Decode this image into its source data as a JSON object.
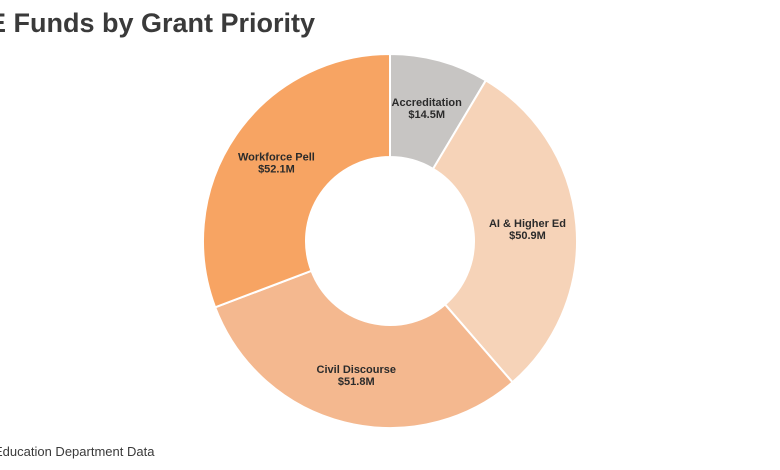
{
  "page": {
    "title": "E Funds by Grant Priority",
    "source": "Education Department Data"
  },
  "chart_data": {
    "type": "pie",
    "donut": true,
    "title": "E Funds by Grant Priority",
    "unit": "$M",
    "start": "12 o'clock",
    "direction": "clockwise",
    "categories": [
      "Accreditation",
      "AI & Higher Ed",
      "Civil Discourse",
      "Workforce Pell"
    ],
    "values": [
      14.5,
      50.9,
      51.8,
      52.1
    ],
    "value_labels": [
      "$14.5M",
      "$50.9M",
      "$51.8M",
      "$52.1M"
    ],
    "colors": [
      "#c7c5c3",
      "#f6d3b8",
      "#f4b88f",
      "#f7a463"
    ],
    "legend": "none"
  }
}
